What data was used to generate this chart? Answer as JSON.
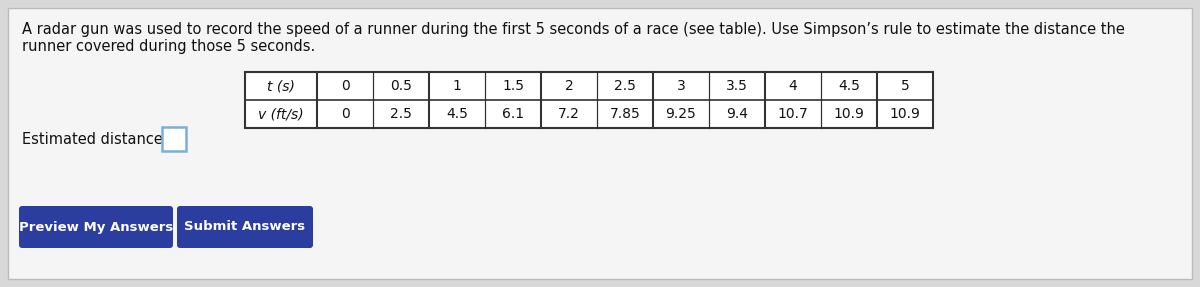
{
  "title_line1": "A radar gun was used to record the speed of a runner during the first 5 seconds of a race (see table). Use Simpson’s rule to estimate the distance the",
  "title_line2": "runner covered during those 5 seconds.",
  "t_label": "t (s)",
  "v_label": "v (ft/s)",
  "t_values": [
    "0",
    "0.5",
    "1",
    "1.5",
    "2",
    "2.5",
    "3",
    "3.5",
    "4",
    "4.5",
    "5"
  ],
  "v_values": [
    "0",
    "2.5",
    "4.5",
    "6.1",
    "7.2",
    "7.85",
    "9.25",
    "9.4",
    "10.7",
    "10.9",
    "10.9"
  ],
  "estimated_distance_label": "Estimated distance:",
  "btn1_text": "Preview My Answers",
  "btn2_text": "Submit Answers",
  "outer_bg_color": "#d8d8d8",
  "panel_color": "#f5f5f5",
  "table_bg": "#ffffff",
  "input_border_color": "#7ab0d4",
  "btn_color": "#2b3d9e",
  "btn_text_color": "#ffffff",
  "font_size_title": 10.5,
  "font_size_table": 10,
  "font_size_btn": 9.5,
  "font_size_estimated": 10.5
}
